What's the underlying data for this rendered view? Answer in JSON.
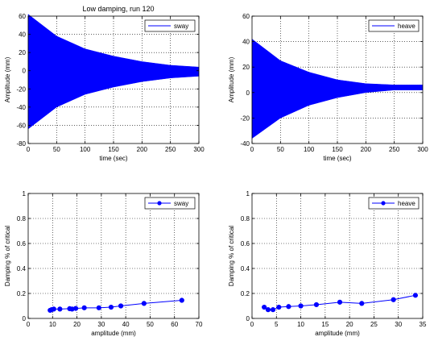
{
  "figure_title": "Low damping, run 120",
  "colors": {
    "series": "#0000ff",
    "axis": "#000000",
    "grid": "#000000"
  },
  "chart_data": [
    {
      "type": "line",
      "panel": "top-left",
      "title": "Low damping, run 120",
      "xlabel": "time (sec)",
      "ylabel": "Amplitude (mm)",
      "xlim": [
        0,
        300
      ],
      "ylim": [
        -80,
        60
      ],
      "xticks": [
        0,
        50,
        100,
        150,
        200,
        250,
        300
      ],
      "yticks": [
        -80,
        -60,
        -40,
        -20,
        0,
        20,
        40,
        60
      ],
      "grid": true,
      "legend": "top-right",
      "legend_label": "sway",
      "series": [
        {
          "name": "sway",
          "style": "filled-oscillation",
          "envelope_upper": {
            "x": [
              0,
              50,
              100,
              150,
              200,
              250,
              300
            ],
            "y": [
              62,
              38,
              24,
              16,
              10,
              6,
              4
            ]
          },
          "envelope_lower": {
            "x": [
              0,
              50,
              100,
              150,
              200,
              250,
              300
            ],
            "y": [
              -64,
              -40,
              -26,
              -18,
              -12,
              -8,
              -6
            ]
          }
        }
      ]
    },
    {
      "type": "line",
      "panel": "top-right",
      "xlabel": "time (sec)",
      "ylabel": "Amplitude (mm)",
      "xlim": [
        0,
        300
      ],
      "ylim": [
        -40,
        60
      ],
      "xticks": [
        0,
        50,
        100,
        150,
        200,
        250,
        300
      ],
      "yticks": [
        -40,
        -20,
        0,
        20,
        40,
        60
      ],
      "grid": true,
      "legend": "top-right",
      "legend_label": "heave",
      "series": [
        {
          "name": "heave",
          "style": "filled-oscillation",
          "envelope_upper": {
            "x": [
              0,
              50,
              100,
              150,
              200,
              250,
              300
            ],
            "y": [
              42,
              25,
              16,
              10,
              7,
              6,
              6
            ]
          },
          "envelope_lower": {
            "x": [
              0,
              50,
              100,
              150,
              200,
              250,
              300
            ],
            "y": [
              -36,
              -20,
              -10,
              -4,
              0,
              2,
              2
            ]
          }
        }
      ]
    },
    {
      "type": "line",
      "panel": "bottom-left",
      "xlabel": "amplitude (mm)",
      "ylabel": "Damping % of critical",
      "xlim": [
        0,
        70
      ],
      "ylim": [
        0,
        1
      ],
      "xticks": [
        0,
        10,
        20,
        30,
        40,
        50,
        60,
        70
      ],
      "yticks": [
        0,
        0.2,
        0.4,
        0.6,
        0.8,
        1
      ],
      "grid": true,
      "legend": "top-right",
      "legend_label": "sway",
      "series": [
        {
          "name": "sway",
          "markers": true,
          "x": [
            9,
            9.6,
            10.5,
            13,
            17,
            18,
            19.5,
            23,
            29,
            34,
            38,
            47.5,
            63
          ],
          "y": [
            0.065,
            0.07,
            0.075,
            0.075,
            0.078,
            0.075,
            0.08,
            0.085,
            0.085,
            0.09,
            0.1,
            0.12,
            0.145
          ]
        }
      ]
    },
    {
      "type": "line",
      "panel": "bottom-right",
      "xlabel": "amplitude (mm)",
      "ylabel": "Damping % of critical",
      "xlim": [
        0,
        35
      ],
      "ylim": [
        0,
        1
      ],
      "xticks": [
        0,
        5,
        10,
        15,
        20,
        25,
        30,
        35
      ],
      "yticks": [
        0,
        0.2,
        0.4,
        0.6,
        0.8,
        1
      ],
      "grid": true,
      "legend": "top-right",
      "legend_label": "heave",
      "series": [
        {
          "name": "heave",
          "markers": true,
          "x": [
            2.5,
            3.3,
            4.3,
            5.5,
            7.5,
            10,
            13.2,
            18,
            22.5,
            29,
            33.5
          ],
          "y": [
            0.09,
            0.07,
            0.07,
            0.09,
            0.095,
            0.1,
            0.11,
            0.13,
            0.12,
            0.15,
            0.185
          ]
        }
      ]
    }
  ]
}
